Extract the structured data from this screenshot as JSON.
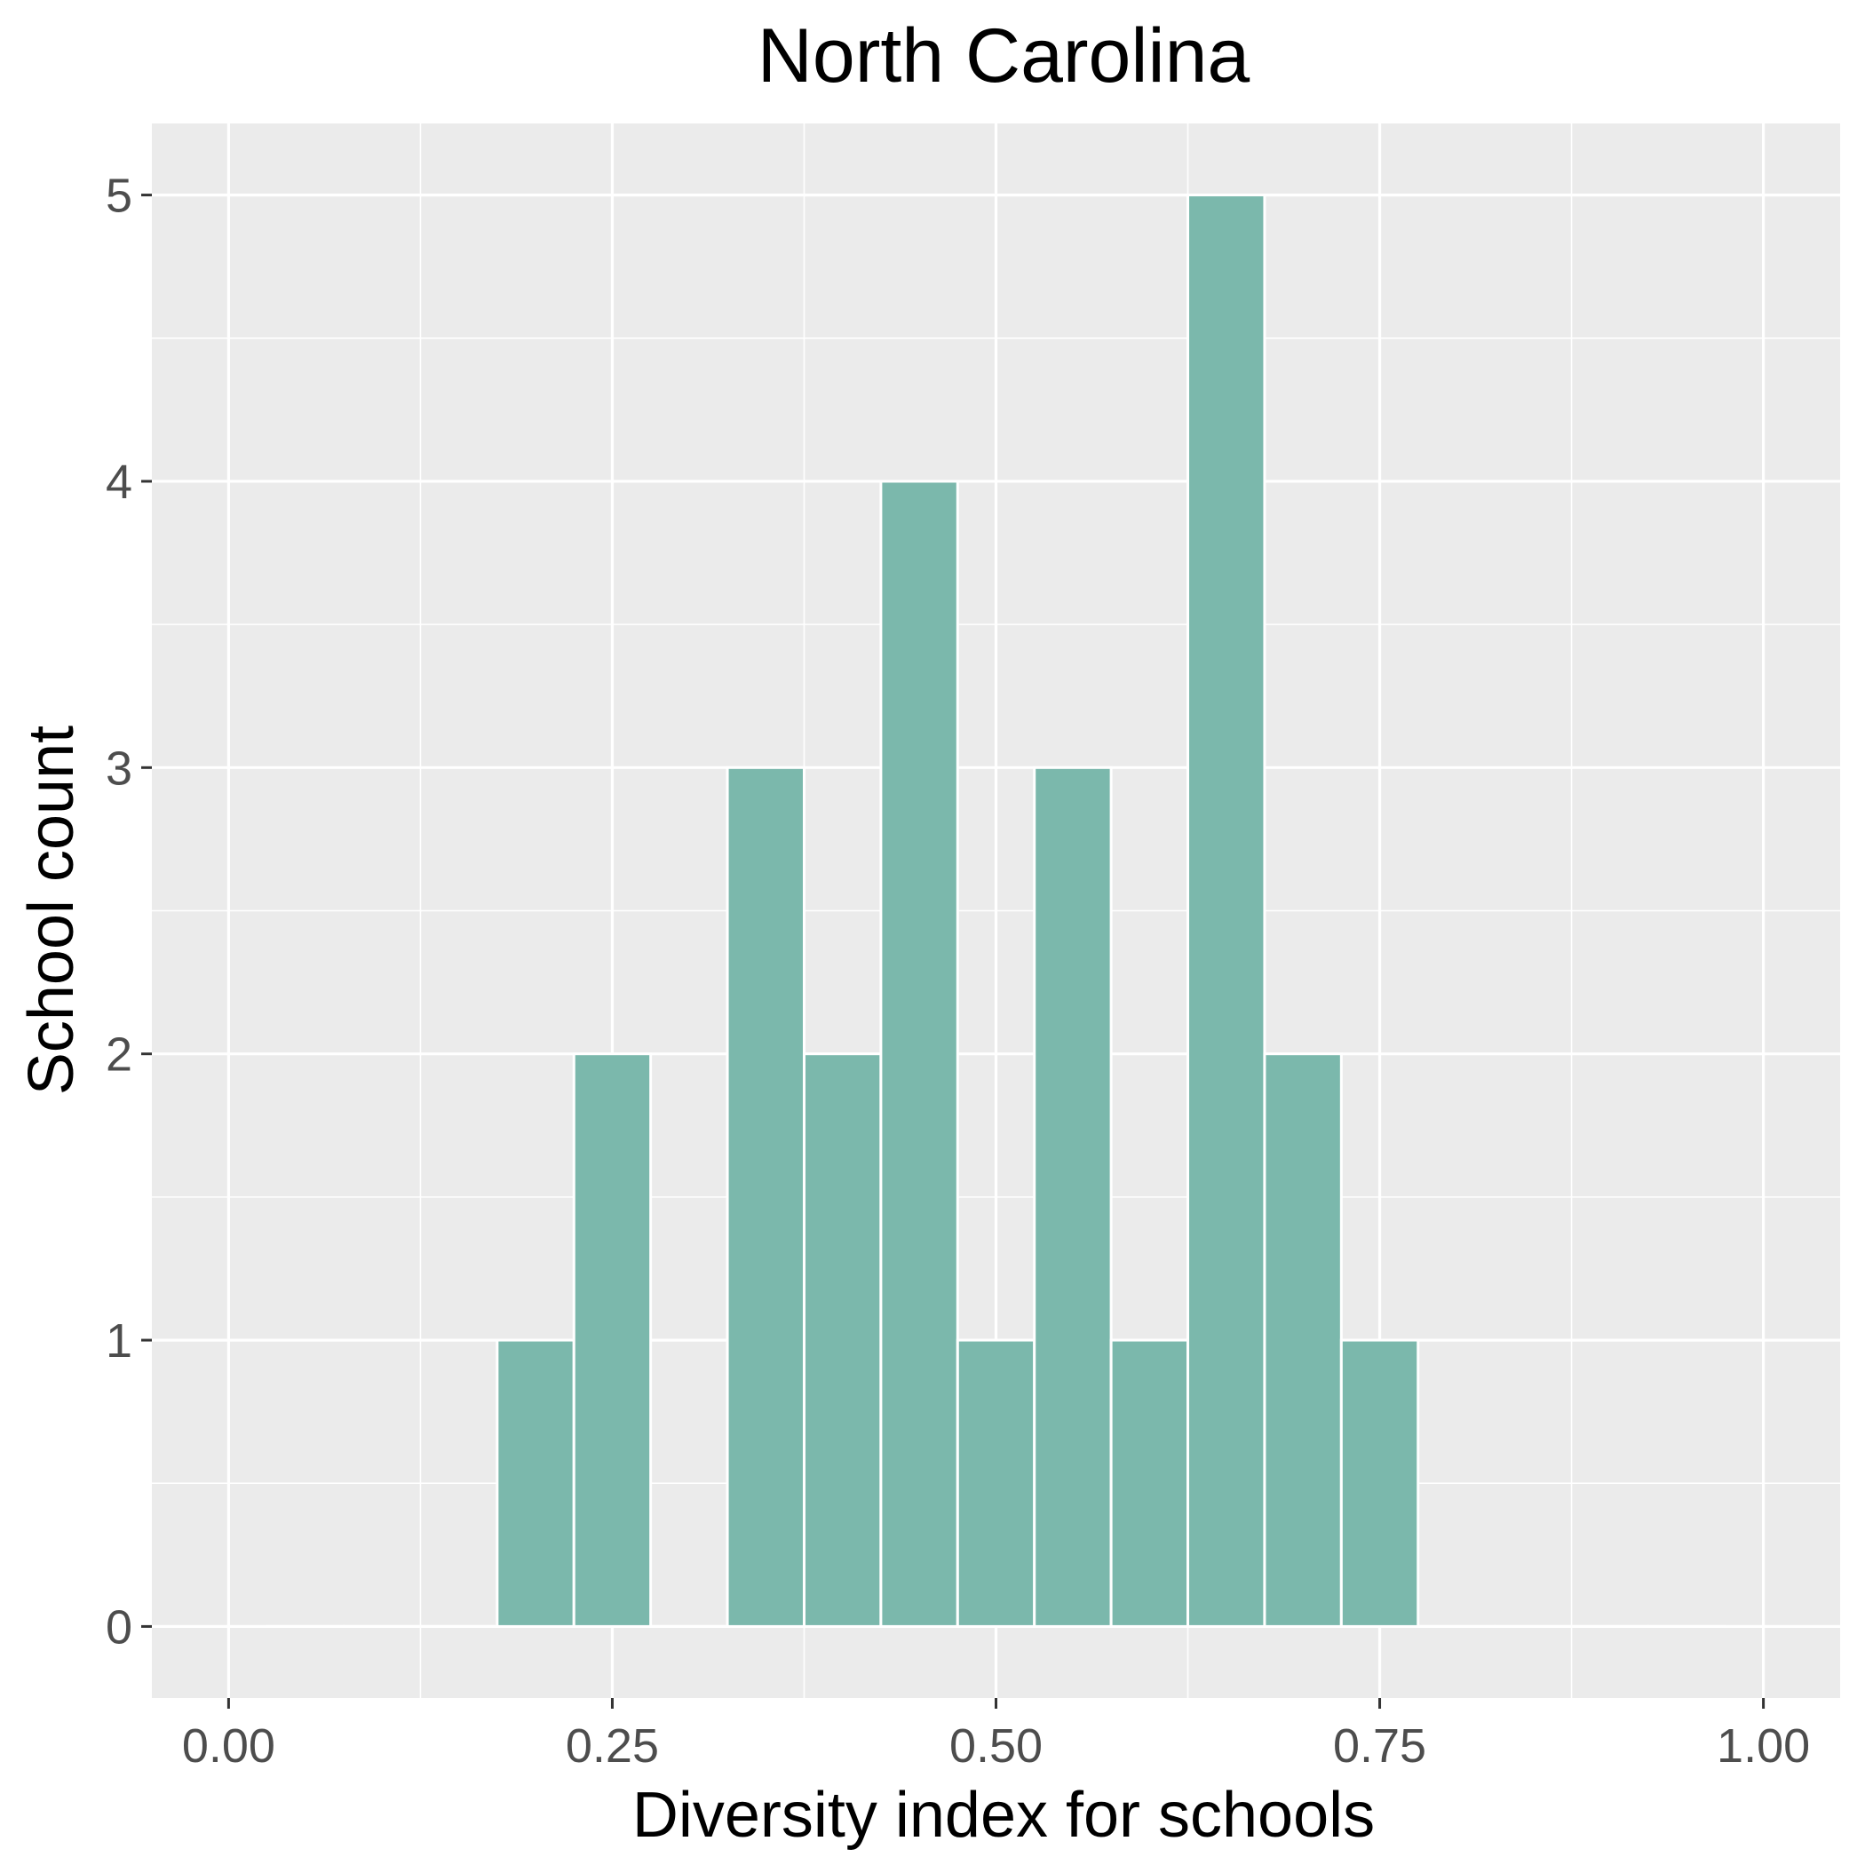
{
  "chart_data": {
    "type": "bar",
    "title": "North Carolina",
    "xlabel": "Diversity index for schools",
    "ylabel": "School count",
    "xlim": [
      -0.05,
      1.05
    ],
    "ylim": [
      -0.25,
      5.25
    ],
    "x_ticks": [
      {
        "value": 0.0,
        "label": "0.00"
      },
      {
        "value": 0.25,
        "label": "0.25"
      },
      {
        "value": 0.5,
        "label": "0.50"
      },
      {
        "value": 0.75,
        "label": "0.75"
      },
      {
        "value": 1.0,
        "label": "1.00"
      }
    ],
    "y_ticks": [
      {
        "value": 0,
        "label": "0"
      },
      {
        "value": 1,
        "label": "1"
      },
      {
        "value": 2,
        "label": "2"
      },
      {
        "value": 3,
        "label": "3"
      },
      {
        "value": 4,
        "label": "4"
      },
      {
        "value": 5,
        "label": "5"
      }
    ],
    "bin_width": 0.05,
    "bins": [
      {
        "x": 0.05,
        "count": 0
      },
      {
        "x": 0.1,
        "count": 0
      },
      {
        "x": 0.15,
        "count": 0
      },
      {
        "x": 0.2,
        "count": 1
      },
      {
        "x": 0.25,
        "count": 2
      },
      {
        "x": 0.3,
        "count": 0
      },
      {
        "x": 0.35,
        "count": 3
      },
      {
        "x": 0.4,
        "count": 2
      },
      {
        "x": 0.45,
        "count": 4
      },
      {
        "x": 0.5,
        "count": 1
      },
      {
        "x": 0.55,
        "count": 3
      },
      {
        "x": 0.6,
        "count": 1
      },
      {
        "x": 0.65,
        "count": 5
      },
      {
        "x": 0.7,
        "count": 2
      },
      {
        "x": 0.75,
        "count": 1
      },
      {
        "x": 0.8,
        "count": 0
      },
      {
        "x": 0.85,
        "count": 0
      },
      {
        "x": 0.9,
        "count": 0
      },
      {
        "x": 0.95,
        "count": 0
      }
    ],
    "grid": true,
    "colors": {
      "panel": "#ebebeb",
      "grid": "#ffffff",
      "bar_fill": "#7bb8ac",
      "bar_outline": "#ffffff"
    }
  }
}
